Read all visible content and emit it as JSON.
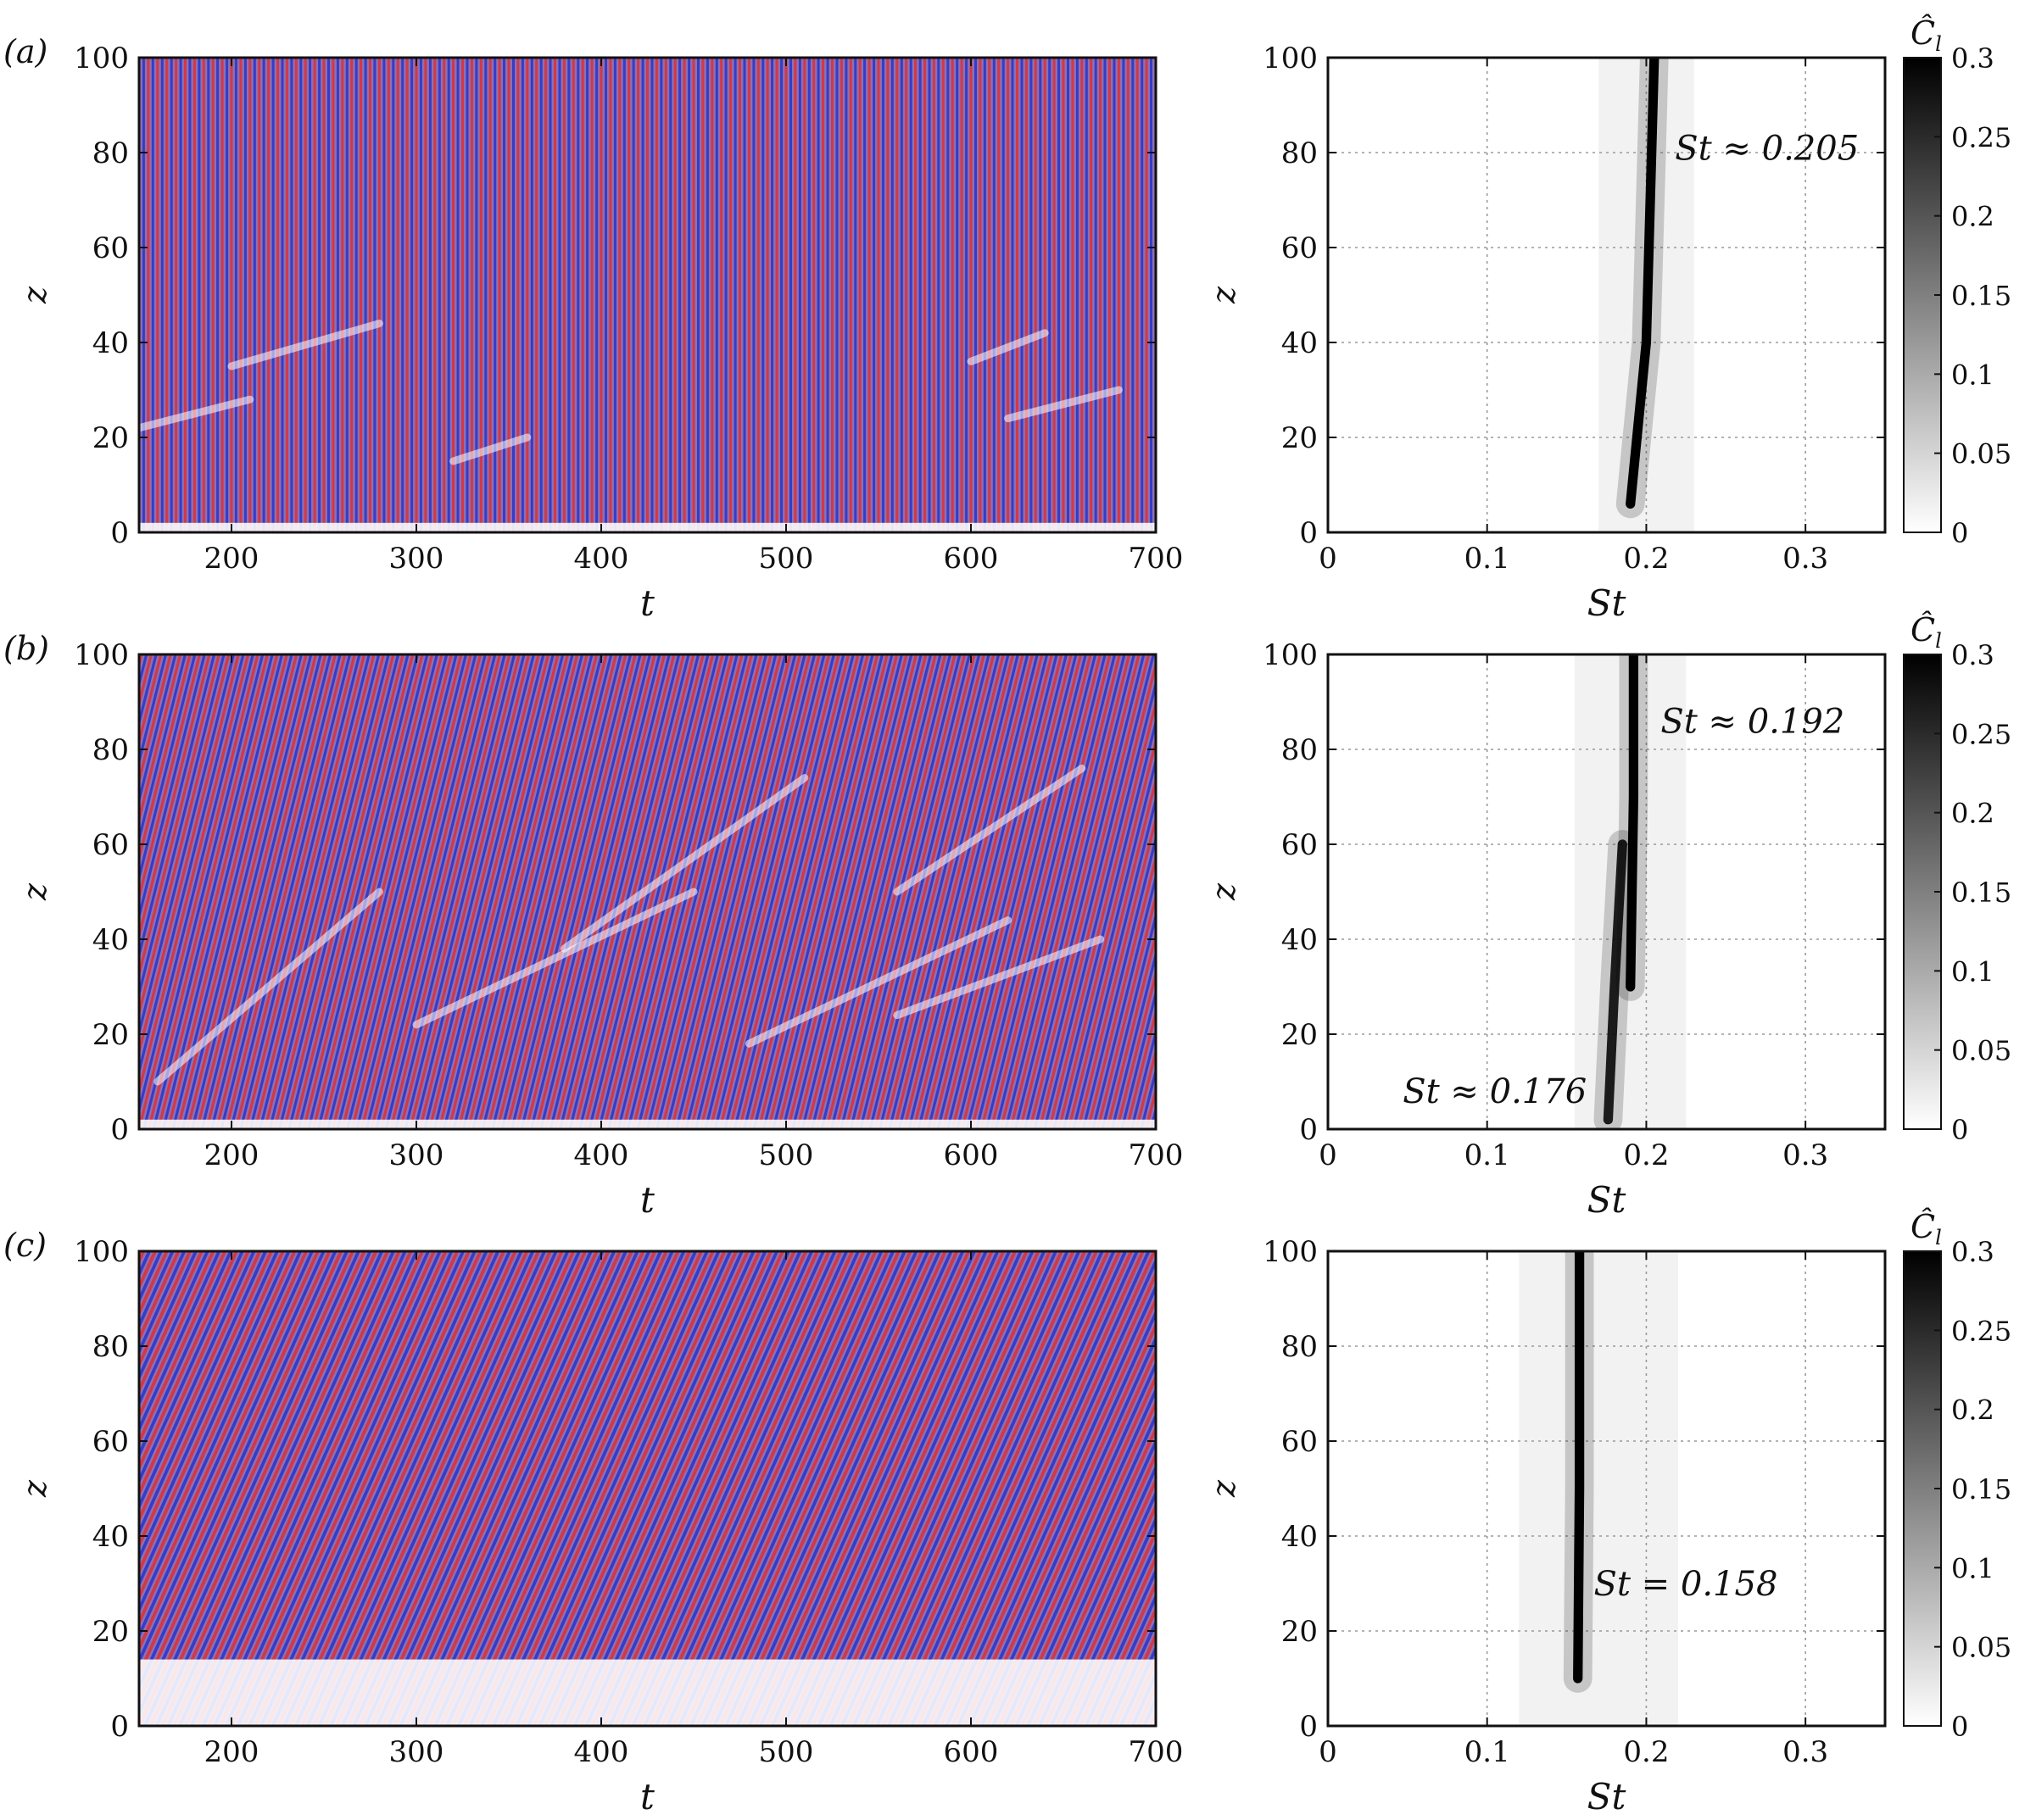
{
  "figure": {
    "colorbar_label": "Ĉ",
    "colorbar_label_subscript": "l"
  },
  "chart_data": [
    {
      "type": "heatmap",
      "panel": "(a)",
      "xlabel": "t",
      "ylabel": "z",
      "xlim": [
        150,
        700
      ],
      "ylim": [
        0,
        100
      ],
      "xticks": [
        200,
        300,
        400,
        500,
        600,
        700
      ],
      "yticks": [
        0,
        20,
        40,
        60,
        80,
        100
      ],
      "colormap": [
        "#2b36c9",
        "#ffffff",
        "#d8323a"
      ],
      "pattern": {
        "waves": 220,
        "tilt": 0.0,
        "quiet_z": 2
      },
      "streaks": [
        [
          150,
          22,
          210,
          28
        ],
        [
          200,
          35,
          280,
          44
        ],
        [
          320,
          15,
          360,
          20
        ],
        [
          600,
          36,
          640,
          42
        ],
        [
          620,
          24,
          680,
          30
        ]
      ]
    },
    {
      "type": "heatmap",
      "panel": "",
      "xlabel": "St",
      "ylabel": "z",
      "xlim": [
        0,
        0.35
      ],
      "ylim": [
        0,
        100
      ],
      "xticks": [
        0,
        0.1,
        0.2,
        0.3
      ],
      "yticks": [
        0,
        20,
        40,
        60,
        80,
        100
      ],
      "grid": true,
      "colorbar": {
        "range": [
          0,
          0.3
        ],
        "ticks": [
          0,
          0.05,
          0.1,
          0.15,
          0.2,
          0.25,
          0.3
        ]
      },
      "annotations": [
        {
          "text": "St ≈ 0.205",
          "x": 0.218,
          "y": 81
        }
      ],
      "ridges": [
        {
          "points": [
            [
              0.19,
              6
            ],
            [
              0.2,
              40
            ],
            [
              0.205,
              100
            ]
          ],
          "value": 0.3,
          "width": 0.006
        }
      ],
      "haze": {
        "center": 0.2,
        "spread": 0.03,
        "value": 0.05
      }
    },
    {
      "type": "heatmap",
      "panel": "(b)",
      "xlabel": "t",
      "ylabel": "z",
      "xlim": [
        150,
        700
      ],
      "ylim": [
        0,
        100
      ],
      "xticks": [
        200,
        300,
        400,
        500,
        600,
        700
      ],
      "yticks": [
        0,
        20,
        40,
        60,
        80,
        100
      ],
      "colormap": [
        "#2b36c9",
        "#ffffff",
        "#d8323a"
      ],
      "pattern": {
        "waves": 210,
        "tilt": 0.25,
        "quiet_z": 2
      },
      "streaks": [
        [
          160,
          10,
          280,
          50
        ],
        [
          300,
          22,
          450,
          50
        ],
        [
          380,
          38,
          510,
          74
        ],
        [
          480,
          18,
          620,
          44
        ],
        [
          560,
          24,
          670,
          40
        ],
        [
          560,
          50,
          660,
          76
        ]
      ]
    },
    {
      "type": "heatmap",
      "panel": "",
      "xlabel": "St",
      "ylabel": "z",
      "xlim": [
        0,
        0.35
      ],
      "ylim": [
        0,
        100
      ],
      "xticks": [
        0,
        0.1,
        0.2,
        0.3
      ],
      "yticks": [
        0,
        20,
        40,
        60,
        80,
        100
      ],
      "grid": true,
      "colorbar": {
        "range": [
          0,
          0.3
        ],
        "ticks": [
          0,
          0.05,
          0.1,
          0.15,
          0.2,
          0.25,
          0.3
        ]
      },
      "annotations": [
        {
          "text": "St ≈ 0.192",
          "x": 0.209,
          "y": 86
        },
        {
          "text": "St ≈ 0.176",
          "x": 0.047,
          "y": 8
        }
      ],
      "ridges": [
        {
          "points": [
            [
              0.176,
              2
            ],
            [
              0.18,
              30
            ],
            [
              0.185,
              60
            ]
          ],
          "value": 0.26,
          "width": 0.006
        },
        {
          "points": [
            [
              0.19,
              30
            ],
            [
              0.192,
              70
            ],
            [
              0.192,
              100
            ]
          ],
          "value": 0.3,
          "width": 0.006
        }
      ],
      "haze": {
        "center": 0.19,
        "spread": 0.035,
        "value": 0.05
      }
    },
    {
      "type": "heatmap",
      "panel": "(c)",
      "xlabel": "t",
      "ylabel": "z",
      "xlim": [
        150,
        700
      ],
      "ylim": [
        0,
        100
      ],
      "xticks": [
        200,
        300,
        400,
        500,
        600,
        700
      ],
      "yticks": [
        0,
        20,
        40,
        60,
        80,
        100
      ],
      "colormap": [
        "#2b36c9",
        "#ffffff",
        "#d8323a"
      ],
      "pattern": {
        "waves": 175,
        "tilt": 0.45,
        "quiet_z": 14
      },
      "streaks": []
    },
    {
      "type": "heatmap",
      "panel": "",
      "xlabel": "St",
      "ylabel": "z",
      "xlim": [
        0,
        0.35
      ],
      "ylim": [
        0,
        100
      ],
      "xticks": [
        0,
        0.1,
        0.2,
        0.3
      ],
      "yticks": [
        0,
        20,
        40,
        60,
        80,
        100
      ],
      "grid": true,
      "colorbar": {
        "range": [
          0,
          0.3
        ],
        "ticks": [
          0,
          0.05,
          0.1,
          0.15,
          0.2,
          0.25,
          0.3
        ]
      },
      "annotations": [
        {
          "text": "St = 0.158",
          "x": 0.167,
          "y": 30
        }
      ],
      "ridges": [
        {
          "points": [
            [
              0.157,
              10
            ],
            [
              0.158,
              50
            ],
            [
              0.158,
              100
            ]
          ],
          "value": 0.3,
          "width": 0.006
        }
      ],
      "haze": {
        "center": 0.17,
        "spread": 0.05,
        "value": 0.05
      }
    }
  ]
}
